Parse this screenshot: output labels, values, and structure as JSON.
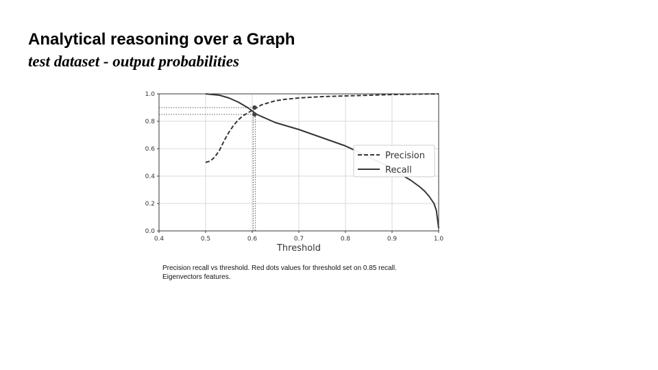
{
  "slide": {
    "title": "Analytical reasoning over a Graph",
    "subtitle": "test dataset - output probabilities"
  },
  "caption": {
    "line1": "Precision recall vs threshold. Red dots values for threshold set on 0.85 recall.",
    "line2": "Eigenvectors features."
  },
  "chart_data": {
    "type": "line",
    "xlabel": "Threshold",
    "ylabel": "",
    "xlim": [
      0.4,
      1.0
    ],
    "ylim": [
      0.0,
      1.0
    ],
    "xticks": [
      "0.4",
      "0.5",
      "0.6",
      "0.7",
      "0.8",
      "0.9",
      "1.0"
    ],
    "yticks": [
      "0.0",
      "0.2",
      "0.4",
      "0.6",
      "0.8",
      "1.0"
    ],
    "grid": true,
    "legend_position": "right",
    "series": [
      {
        "name": "Precision",
        "style": "dashed",
        "color": "#333333",
        "x": [
          0.5,
          0.51,
          0.52,
          0.53,
          0.54,
          0.55,
          0.56,
          0.57,
          0.58,
          0.59,
          0.6,
          0.61,
          0.62,
          0.63,
          0.65,
          0.67,
          0.7,
          0.75,
          0.8,
          0.85,
          0.9,
          0.95,
          1.0
        ],
        "y": [
          0.5,
          0.51,
          0.54,
          0.59,
          0.66,
          0.72,
          0.77,
          0.81,
          0.84,
          0.86,
          0.88,
          0.9,
          0.92,
          0.93,
          0.95,
          0.96,
          0.97,
          0.98,
          0.985,
          0.99,
          0.995,
          0.998,
          1.0
        ]
      },
      {
        "name": "Recall",
        "style": "solid",
        "color": "#333333",
        "x": [
          0.5,
          0.53,
          0.55,
          0.57,
          0.59,
          0.61,
          0.63,
          0.65,
          0.7,
          0.75,
          0.8,
          0.85,
          0.88,
          0.9,
          0.92,
          0.94,
          0.96,
          0.97,
          0.98,
          0.99,
          0.995,
          1.0
        ],
        "y": [
          1.0,
          0.99,
          0.97,
          0.94,
          0.9,
          0.85,
          0.82,
          0.79,
          0.74,
          0.68,
          0.62,
          0.54,
          0.49,
          0.45,
          0.41,
          0.37,
          0.32,
          0.29,
          0.25,
          0.2,
          0.15,
          0.02
        ]
      }
    ],
    "markers": [
      {
        "x": 0.605,
        "y": 0.9,
        "color": "#444444"
      },
      {
        "x": 0.605,
        "y": 0.85,
        "color": "#444444"
      }
    ],
    "reference_lines": {
      "threshold": 0.605,
      "levels": [
        0.9,
        0.85
      ],
      "style": "dotted"
    }
  }
}
